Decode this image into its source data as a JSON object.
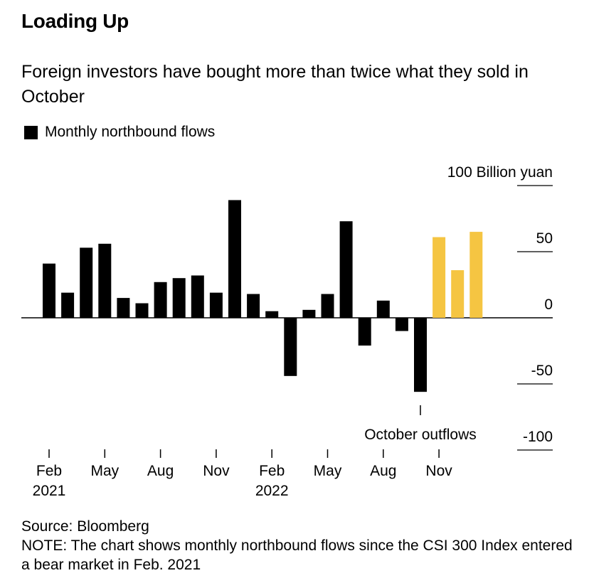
{
  "chart_data": {
    "type": "bar",
    "title": "Loading Up",
    "subtitle": "Foreign investors have bought more than twice what they sold in October",
    "legend": [
      "Monthly northbound flows"
    ],
    "unit_label": "100 Billion yuan",
    "y_ticks": [
      "100 Billion yuan",
      "50",
      "0",
      "-50",
      "-100"
    ],
    "ylim": [
      -100,
      100
    ],
    "x_tick_labels": [
      {
        "month": "Feb",
        "year": "2021"
      },
      {
        "month": "May",
        "year": ""
      },
      {
        "month": "Aug",
        "year": ""
      },
      {
        "month": "Nov",
        "year": ""
      },
      {
        "month": "Feb",
        "year": "2022"
      },
      {
        "month": "May",
        "year": ""
      },
      {
        "month": "Aug",
        "year": ""
      },
      {
        "month": "Nov",
        "year": ""
      }
    ],
    "categories": [
      "Feb 2021",
      "Mar 2021",
      "Apr 2021",
      "May 2021",
      "Jun 2021",
      "Jul 2021",
      "Aug 2021",
      "Sep 2021",
      "Oct 2021",
      "Nov 2021",
      "Dec 2021",
      "Jan 2022",
      "Feb 2022",
      "Mar 2022",
      "Apr 2022",
      "May 2022",
      "Jun 2022",
      "Jul 2022",
      "Aug 2022",
      "Sep 2022",
      "Oct 2022",
      "Nov 2022",
      "Dec 2022",
      "Jan 2023"
    ],
    "values": [
      41,
      19,
      53,
      56,
      15,
      11,
      27,
      30,
      32,
      19,
      89,
      18,
      5,
      -44,
      6,
      18,
      73,
      -21,
      13,
      -10,
      -56,
      61,
      36,
      65
    ],
    "colors": [
      "#000000",
      "#000000",
      "#000000",
      "#000000",
      "#000000",
      "#000000",
      "#000000",
      "#000000",
      "#000000",
      "#000000",
      "#000000",
      "#000000",
      "#000000",
      "#000000",
      "#000000",
      "#000000",
      "#000000",
      "#000000",
      "#000000",
      "#000000",
      "#000000",
      "#f5c542",
      "#f5c542",
      "#f5c542"
    ],
    "annotation": {
      "text": "October outflows",
      "category": "Oct 2022"
    },
    "grid": "right-side tick lines"
  },
  "footer": {
    "source": "Source: Bloomberg",
    "note": "NOTE: The chart shows monthly northbound flows since the CSI 300 Index entered a bear market in Feb. 2021"
  }
}
